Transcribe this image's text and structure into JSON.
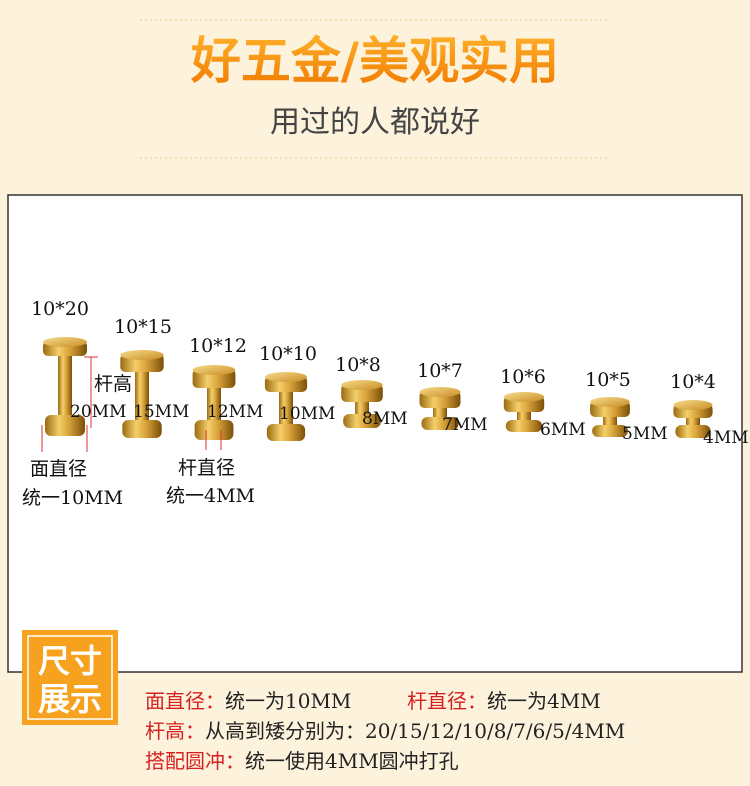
{
  "header": {
    "title": "好五金/美观实用",
    "subtitle": "用过的人都说好"
  },
  "panel": {
    "items": [
      {
        "label": "10*20",
        "height": "20MM"
      },
      {
        "label": "10*15",
        "height": "15MM"
      },
      {
        "label": "10*12",
        "height": "12MM"
      },
      {
        "label": "10*10",
        "height": "10MM"
      },
      {
        "label": "10*8",
        "height": "8MM"
      },
      {
        "label": "10*7",
        "height": "7MM"
      },
      {
        "label": "10*6",
        "height": "6MM"
      },
      {
        "label": "10*5",
        "height": "5MM"
      },
      {
        "label": "10*4",
        "height": "4MM"
      }
    ],
    "stem_label": "杆高",
    "face_diameter": {
      "label": "面直径",
      "value": "统一10MM"
    },
    "stem_diameter": {
      "label": "杆直径",
      "value": "统一4MM"
    }
  },
  "badge": [
    "尺寸",
    "展示"
  ],
  "specs": [
    {
      "label": "面直径：",
      "text": "统一为10MM"
    },
    {
      "label": "杆直径：",
      "text": "统一为4MM"
    },
    {
      "label": "杆高：",
      "text": "从高到矮分别为：20/15/12/10/8/7/6/5/4MM"
    },
    {
      "label": "搭配圆冲：",
      "text": "统一使用4MM圆冲打孔"
    }
  ]
}
